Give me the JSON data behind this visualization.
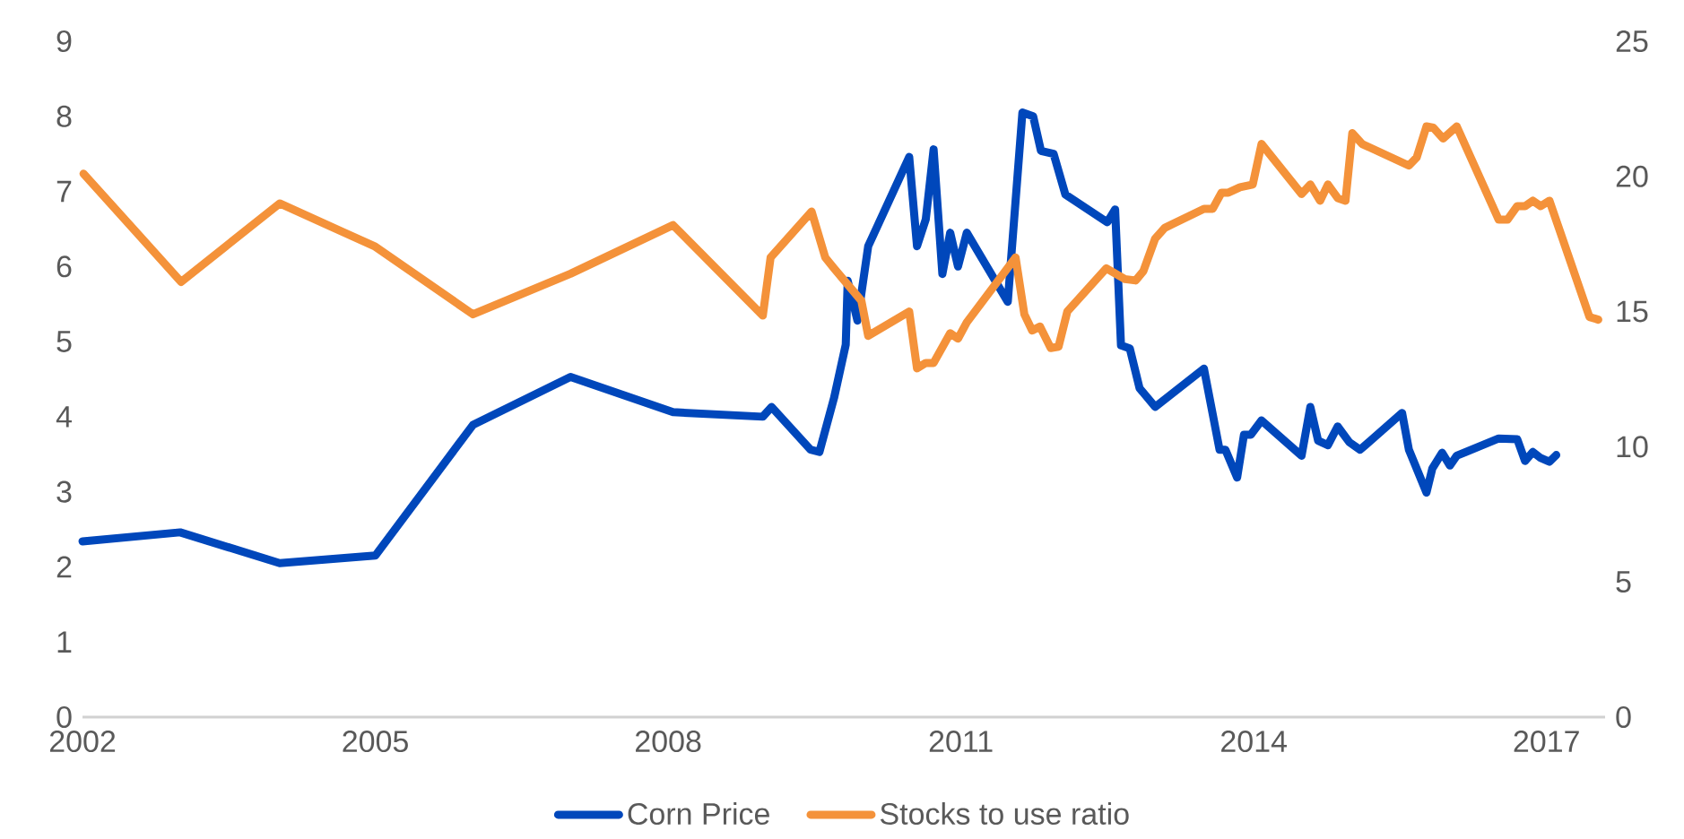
{
  "chart_data": {
    "type": "line",
    "xlim": [
      2002,
      2017.6
    ],
    "xticks": [
      2002,
      2005,
      2008,
      2011,
      2014,
      2017
    ],
    "ylim": [
      0,
      9
    ],
    "yticks": [
      0,
      1,
      2,
      3,
      4,
      5,
      6,
      7,
      8,
      9
    ],
    "y2lim": [
      0,
      25
    ],
    "y2ticks": [
      0,
      5,
      10,
      15,
      20,
      25
    ],
    "grid": false,
    "legend": "bottom",
    "line_style": "solid",
    "series": [
      {
        "name": "Corn Price",
        "color": "#0047bb",
        "axis": "y",
        "x": [
          2002.0,
          2003.0,
          2004.02,
          2005.0,
          2006.0,
          2007.0,
          2008.05,
          2008.97,
          2009.06,
          2009.46,
          2009.55,
          2009.7,
          2009.82,
          2009.84,
          2009.94,
          2010.05,
          2010.47,
          2010.55,
          2010.64,
          2010.72,
          2010.81,
          2010.89,
          2010.97,
          2011.06,
          2011.48,
          2011.63,
          2011.74,
          2011.82,
          2011.95,
          2012.07,
          2012.5,
          2012.58,
          2012.64,
          2012.73,
          2012.83,
          2012.99,
          2013.49,
          2013.65,
          2013.71,
          2013.83,
          2013.9,
          2013.97,
          2014.08,
          2014.49,
          2014.58,
          2014.66,
          2014.76,
          2014.86,
          2014.98,
          2015.09,
          2015.52,
          2015.59,
          2015.77,
          2015.83,
          2015.93,
          2016.01,
          2016.08,
          2016.51,
          2016.7,
          2016.78,
          2016.86,
          2016.94,
          2017.03,
          2017.1
        ],
        "values": [
          2.34,
          2.46,
          2.05,
          2.15,
          3.89,
          4.53,
          4.06,
          4.0,
          4.13,
          3.56,
          3.53,
          4.25,
          4.96,
          5.81,
          5.28,
          6.27,
          7.46,
          6.27,
          6.63,
          7.56,
          5.9,
          6.45,
          6.0,
          6.45,
          5.53,
          8.05,
          8.0,
          7.54,
          7.5,
          6.96,
          6.59,
          6.76,
          4.95,
          4.91,
          4.38,
          4.13,
          4.64,
          3.56,
          3.56,
          3.19,
          3.76,
          3.76,
          3.95,
          3.48,
          4.13,
          3.68,
          3.62,
          3.87,
          3.66,
          3.56,
          4.05,
          3.56,
          2.99,
          3.31,
          3.52,
          3.35,
          3.48,
          3.71,
          3.7,
          3.41,
          3.53,
          3.45,
          3.4,
          3.49
        ]
      },
      {
        "name": "Stocks to use ratio",
        "color": "#f4923a",
        "axis": "y2",
        "x": [
          2002.01,
          2003.01,
          2004.02,
          2005.0,
          2006.0,
          2007.0,
          2008.05,
          2008.97,
          2009.05,
          2009.47,
          2009.61,
          2009.7,
          2009.98,
          2010.05,
          2010.47,
          2010.55,
          2010.64,
          2010.72,
          2010.89,
          2010.97,
          2011.06,
          2011.56,
          2011.65,
          2011.73,
          2011.81,
          2011.92,
          2012.0,
          2012.09,
          2012.49,
          2012.68,
          2012.79,
          2012.87,
          2012.99,
          2013.09,
          2013.49,
          2013.58,
          2013.67,
          2013.74,
          2013.86,
          2013.99,
          2014.08,
          2014.49,
          2014.58,
          2014.68,
          2014.76,
          2014.86,
          2014.94,
          2015.01,
          2015.11,
          2015.59,
          2015.67,
          2015.77,
          2015.84,
          2015.94,
          2016.08,
          2016.51,
          2016.6,
          2016.7,
          2016.78,
          2016.86,
          2016.94,
          2017.03,
          2017.44,
          2017.53
        ],
        "values": [
          20.1,
          16.1,
          19.0,
          17.4,
          14.9,
          16.4,
          18.2,
          14.85,
          17.0,
          18.7,
          17.0,
          16.6,
          15.4,
          14.1,
          15.0,
          12.9,
          13.1,
          13.1,
          14.2,
          14.0,
          14.6,
          17.0,
          14.9,
          14.3,
          14.45,
          13.65,
          13.7,
          15.0,
          16.6,
          16.2,
          16.15,
          16.5,
          17.7,
          18.1,
          18.8,
          18.8,
          19.4,
          19.4,
          19.6,
          19.7,
          21.2,
          19.35,
          19.7,
          19.1,
          19.7,
          19.2,
          19.1,
          21.6,
          21.2,
          20.4,
          20.7,
          21.85,
          21.8,
          21.4,
          21.85,
          18.4,
          18.4,
          18.9,
          18.9,
          19.1,
          18.9,
          19.1,
          14.8,
          14.7
        ]
      }
    ]
  }
}
